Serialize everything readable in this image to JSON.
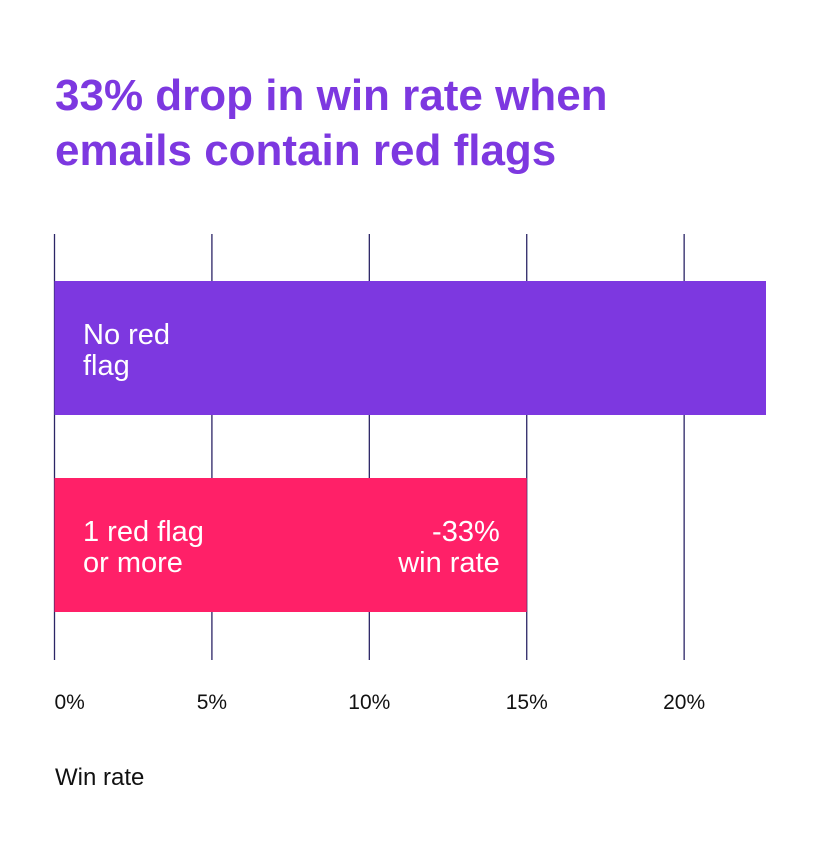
{
  "title_lines": [
    "33% drop in win rate when",
    "emails contain red flags"
  ],
  "colors": {
    "title": "#7d38e0",
    "grid": "#2b2566",
    "series_no_flag": "#7d38e0",
    "series_red_flag": "#ff2068",
    "bar_text": "#ffffff"
  },
  "chart_data": {
    "type": "bar",
    "orientation": "horizontal",
    "title": "33% drop in win rate when emails contain red flags",
    "xlabel": "Win rate",
    "ylabel": "",
    "xlim": [
      0,
      22.6
    ],
    "ticks": [
      0,
      5,
      10,
      15,
      20
    ],
    "tick_labels": [
      "0%",
      "5%",
      "10%",
      "15%",
      "20%"
    ],
    "grid": "vertical",
    "categories": [
      {
        "label_lines": [
          "No red",
          "flag"
        ],
        "value": 22.6,
        "color_key": "series_no_flag"
      },
      {
        "label_lines": [
          "1 red flag",
          "or more"
        ],
        "value": 15.0,
        "color_key": "series_red_flag",
        "annotation_lines": [
          "-33%",
          "win rate"
        ]
      }
    ]
  }
}
